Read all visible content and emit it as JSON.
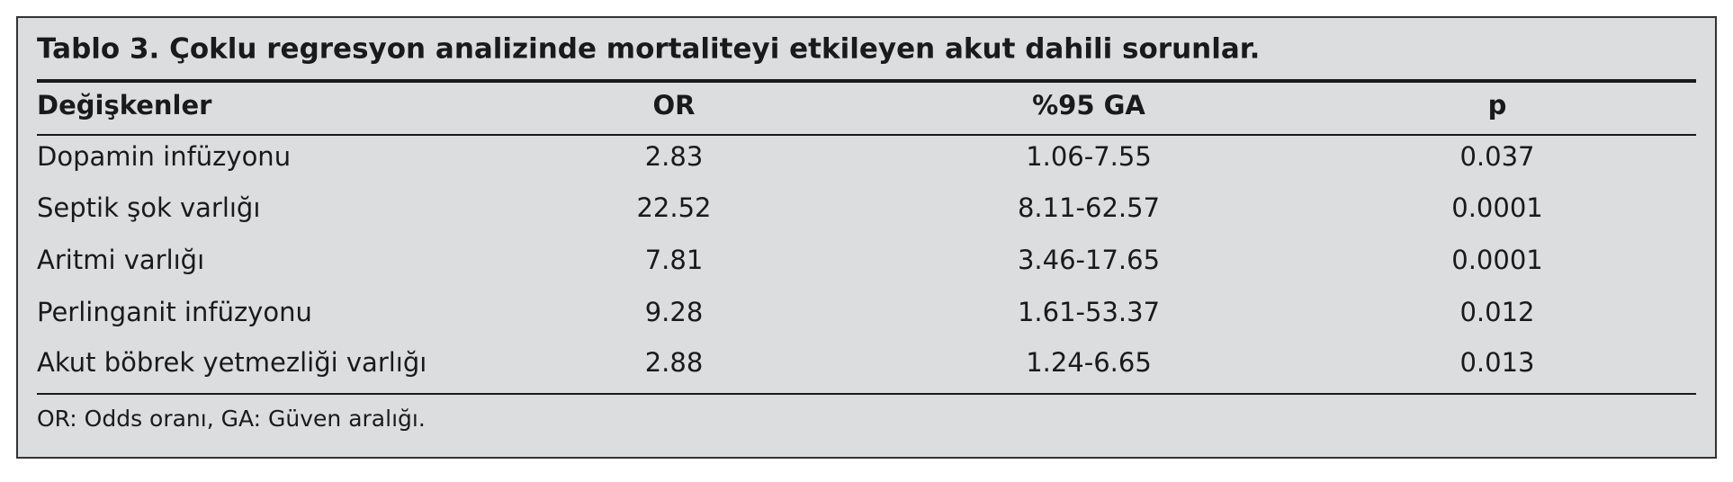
{
  "table": {
    "title": "Tablo 3. Çoklu regresyon analizinde mortaliteyi etkileyen akut dahili sorunlar.",
    "header": [
      "Değişkenler",
      "OR",
      "%95 GA",
      "p"
    ],
    "rows": [
      [
        "Dopamin infüzyonu",
        "2.83",
        "1.06-7.55",
        "0.037"
      ],
      [
        "Septik şok varlığı",
        "22.52",
        "8.11-62.57",
        "0.0001"
      ],
      [
        "Aritmi varlığı",
        "7.81",
        "3.46-17.65",
        "0.0001"
      ],
      [
        "Perlinganit infüzyonu",
        "9.28",
        "1.61-53.37",
        "0.012"
      ],
      [
        "Akut böbrek yetmezliği varlığı",
        "2.88",
        "1.24-6.65",
        "0.013"
      ]
    ],
    "footnote": "OR: Odds oranı, GA: Güven aralığı."
  }
}
